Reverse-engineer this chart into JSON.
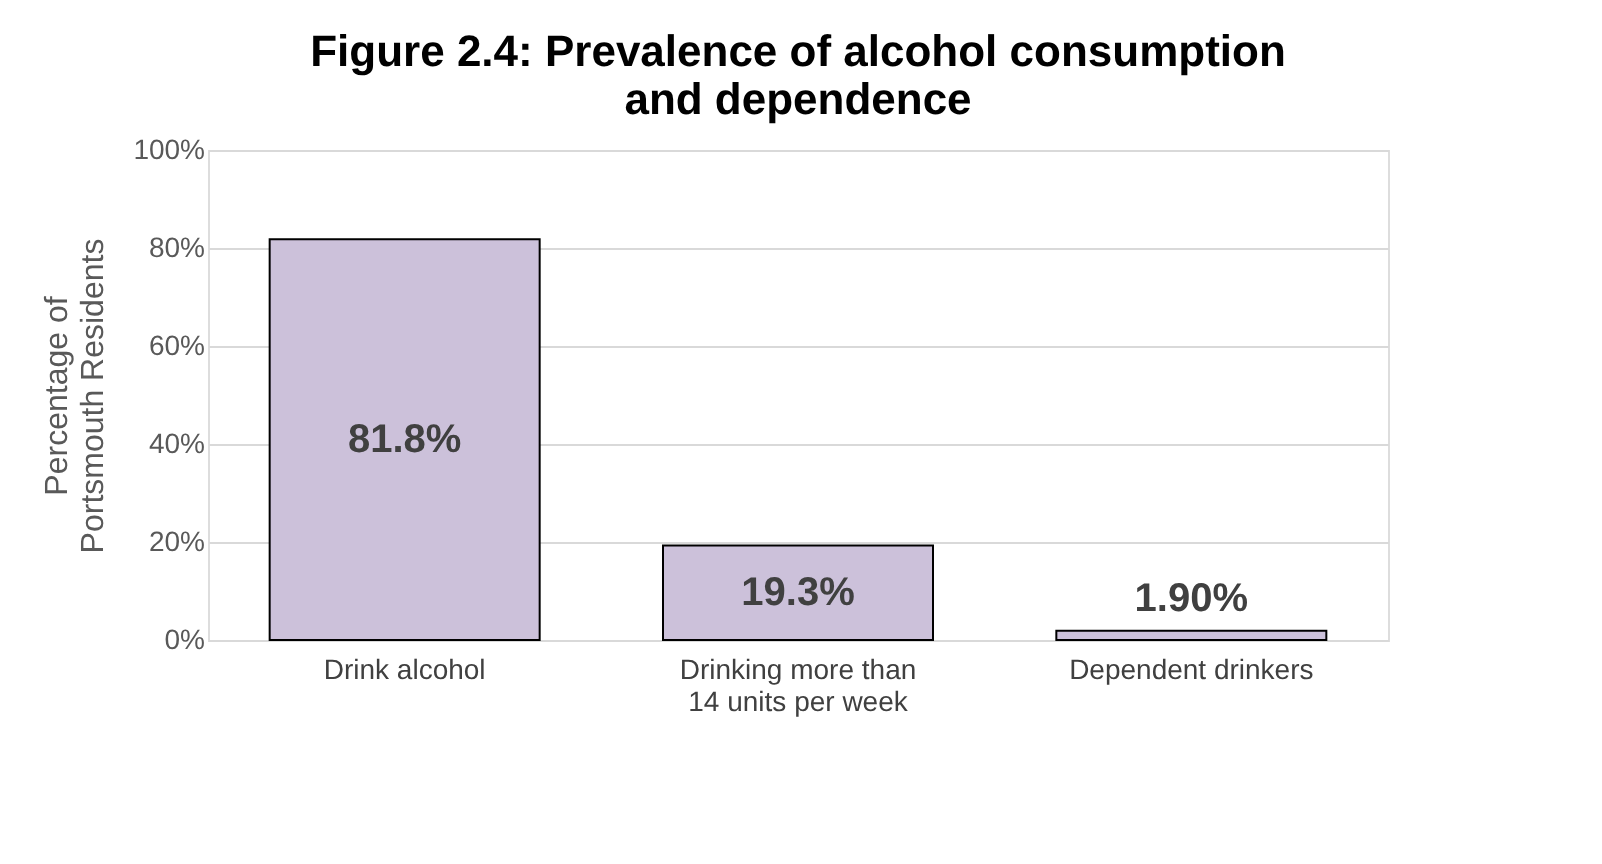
{
  "chart_data": {
    "type": "bar",
    "title": "Figure 2.4: Prevalence of alcohol consumption and dependence",
    "ylabel": "Percentage of Portsmouth Residents",
    "categories": [
      "Drink alcohol",
      "Drinking more than 14 units per week",
      "Dependent drinkers"
    ],
    "values": [
      81.8,
      19.3,
      1.9
    ],
    "value_labels": [
      "81.8%",
      "19.3%",
      "1.90%"
    ],
    "color": "#ccc1da",
    "ylim": [
      0,
      100
    ],
    "yticks": [
      {
        "value": 0,
        "label": "0%"
      },
      {
        "value": 20,
        "label": "20%"
      },
      {
        "value": 40,
        "label": "40%"
      },
      {
        "value": 60,
        "label": "60%"
      },
      {
        "value": 80,
        "label": "80%"
      },
      {
        "value": 100,
        "label": "100%"
      }
    ],
    "grid": "y"
  }
}
